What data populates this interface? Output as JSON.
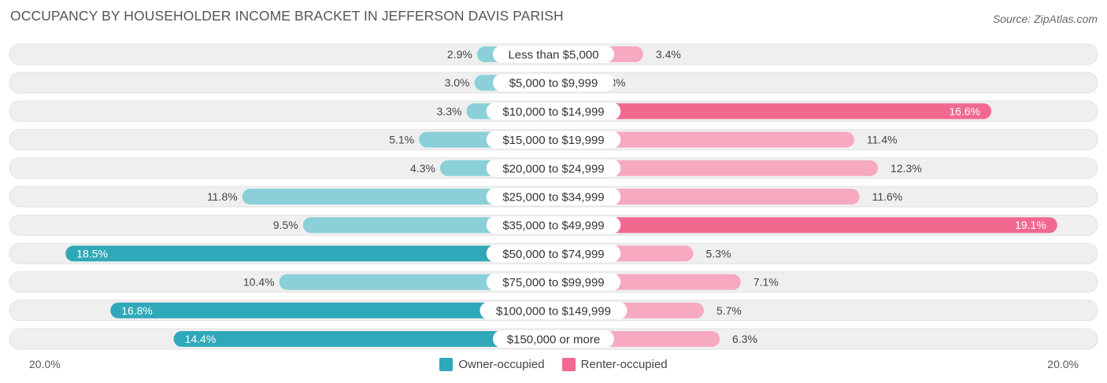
{
  "title": "OCCUPANCY BY HOUSEHOLDER INCOME BRACKET IN JEFFERSON DAVIS PARISH",
  "source": "Source: ZipAtlas.com",
  "axis": {
    "left_label": "20.0%",
    "right_label": "20.0%"
  },
  "legend": {
    "owner_label": "Owner-occupied",
    "renter_label": "Renter-occupied"
  },
  "colors": {
    "owner": "#2fa8b9",
    "owner_light": "#8bd0d9",
    "renter": "#f2698f",
    "renter_light": "#f7a9c0",
    "row_bg": "#efefef"
  },
  "chart_data": {
    "type": "bar",
    "orientation": "horizontal-diverging",
    "categories": [
      "Less than $5,000",
      "$5,000 to $9,999",
      "$10,000 to $14,999",
      "$15,000 to $19,999",
      "$20,000 to $24,999",
      "$25,000 to $34,999",
      "$35,000 to $49,999",
      "$50,000 to $74,999",
      "$75,000 to $99,999",
      "$100,000 to $149,999",
      "$150,000 or more"
    ],
    "series": [
      {
        "name": "Owner-occupied",
        "values": [
          2.9,
          3.0,
          3.3,
          5.1,
          4.3,
          11.8,
          9.5,
          18.5,
          10.4,
          16.8,
          14.4
        ]
      },
      {
        "name": "Renter-occupied",
        "values": [
          3.4,
          1.3,
          16.6,
          11.4,
          12.3,
          11.6,
          19.1,
          5.3,
          7.1,
          5.7,
          6.3
        ]
      }
    ],
    "value_labels": {
      "owner": [
        "2.9%",
        "3.0%",
        "3.3%",
        "5.1%",
        "4.3%",
        "11.8%",
        "9.5%",
        "18.5%",
        "10.4%",
        "16.8%",
        "14.4%"
      ],
      "renter": [
        "3.4%",
        "1.3%",
        "16.6%",
        "11.4%",
        "12.3%",
        "11.6%",
        "19.1%",
        "5.3%",
        "7.1%",
        "5.7%",
        "6.3%"
      ]
    },
    "xlim": [
      -20,
      20
    ],
    "legend_position": "bottom-center"
  }
}
